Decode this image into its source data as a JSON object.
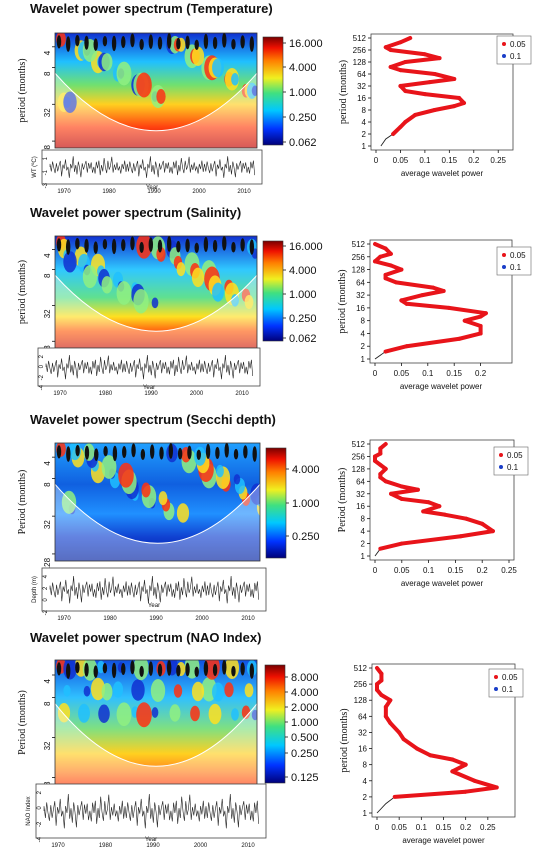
{
  "panels": [
    {
      "title": "Wavelet power spectrum (Temperature)",
      "ylabel": "period (months)",
      "colorbar_ticks": [
        "16.000",
        "4.000",
        "1.000",
        "0.250",
        "0.062"
      ],
      "ts_ylabel": "WT (ºC)",
      "ts_yticks": [
        "1",
        "-1",
        "-3"
      ]
    },
    {
      "title": "Wavelet power spectrum (Salinity)",
      "ylabel": "period (months)",
      "colorbar_ticks": [
        "16.000",
        "4.000",
        "1.000",
        "0.250",
        "0.062"
      ],
      "ts_ylabel": "",
      "ts_yticks": [
        "2",
        "0",
        "-2",
        "-4"
      ]
    },
    {
      "title": "Wavelet power spectrum (Secchi depth)",
      "ylabel": "Period (months)",
      "colorbar_ticks": [
        "4.000",
        "1.000",
        "0.250"
      ],
      "ts_ylabel": "Depth (m)",
      "ts_yticks": [
        "4",
        "2",
        "0",
        "-2"
      ]
    },
    {
      "title": "Wavelet power spectrum (NAO Index)",
      "ylabel": "Period (months)",
      "colorbar_ticks": [
        "8.000",
        "4.000",
        "2.000",
        "1.000",
        "0.500",
        "0.250",
        "0.125"
      ],
      "ts_ylabel": "NAO Index",
      "ts_yticks": [
        "2",
        "0",
        "-2",
        "-4"
      ]
    }
  ],
  "shared": {
    "period_ticks": [
      "4",
      "8",
      "32",
      "128"
    ],
    "year_ticks": [
      "1970",
      "1980",
      "1990",
      "2000",
      "2010"
    ],
    "year_label": "Year",
    "avg_period_ticks": [
      "512",
      "256",
      "128",
      "64",
      "32",
      "16",
      "8",
      "4",
      "2",
      "1"
    ],
    "avg_xlabel": "average wavelet power",
    "avg_ylabel_lower": "period (months)",
    "avg_ylabel_upper": "Period (months)",
    "legend": [
      "0.05",
      "0.1"
    ],
    "legend_colors": [
      "#e8141a",
      "#1a3ec8"
    ]
  },
  "chart_data": [
    {
      "type": "line",
      "title": "Wavelet power spectrum (Temperature)",
      "xlabel": "average wavelet power",
      "ylabel": "period (months)",
      "x_ticks": [
        "0",
        "0.05",
        "0.1",
        "0.15",
        "0.2",
        "0.25"
      ],
      "xlim": [
        0,
        0.27
      ],
      "y_scale": "log2",
      "ylim": [
        1,
        512
      ],
      "series": [
        {
          "name": "0.05",
          "period": [
            1,
            1.5,
            2,
            3,
            4,
            6,
            8,
            10,
            12,
            16,
            20,
            24,
            32,
            40,
            48,
            64,
            80,
            96,
            128,
            160,
            200,
            256,
            300,
            400,
            512
          ],
          "power": [
            0.01,
            0.02,
            0.035,
            0.05,
            0.06,
            0.08,
            0.12,
            0.16,
            0.18,
            0.17,
            0.1,
            0.06,
            0.05,
            0.11,
            0.16,
            0.12,
            0.05,
            0.03,
            0.06,
            0.13,
            0.1,
            0.03,
            0.02,
            0.05,
            0.07
          ]
        }
      ]
    },
    {
      "type": "line",
      "title": "Wavelet power spectrum (Salinity)",
      "xlabel": "average wavelet power",
      "ylabel": "period (months)",
      "x_ticks": [
        "0",
        "0.05",
        "0.1",
        "0.15",
        "0.2"
      ],
      "xlim": [
        0,
        0.25
      ],
      "y_scale": "log2",
      "ylim": [
        1,
        512
      ],
      "series": [
        {
          "name": "0.05",
          "period": [
            1,
            1.5,
            2,
            3,
            4,
            6,
            8,
            10,
            12,
            16,
            20,
            24,
            32,
            40,
            48,
            64,
            80,
            96,
            128,
            160,
            200,
            256,
            300,
            400,
            512
          ],
          "power": [
            0.0,
            0.02,
            0.06,
            0.16,
            0.2,
            0.2,
            0.17,
            0.2,
            0.21,
            0.14,
            0.06,
            0.05,
            0.09,
            0.13,
            0.11,
            0.04,
            0.02,
            0.02,
            0.05,
            0.03,
            0.0,
            0.01,
            0.03,
            0.02,
            0.0
          ]
        }
      ]
    },
    {
      "type": "line",
      "title": "Wavelet power spectrum (Secchi depth)",
      "xlabel": "average wavelet power",
      "ylabel": "Period (months)",
      "x_ticks": [
        "0",
        "0.05",
        "0.1",
        "0.15",
        "0.2",
        "0.25"
      ],
      "xlim": [
        0,
        0.25
      ],
      "y_scale": "log2",
      "ylim": [
        1,
        512
      ],
      "series": [
        {
          "name": "0.05",
          "period": [
            1,
            1.5,
            2,
            3,
            4,
            6,
            8,
            10,
            12,
            16,
            20,
            24,
            32,
            40,
            48,
            64,
            80,
            96,
            128,
            160,
            200,
            256,
            300,
            400,
            512
          ],
          "power": [
            0.0,
            0.01,
            0.05,
            0.16,
            0.22,
            0.2,
            0.17,
            0.13,
            0.09,
            0.12,
            0.1,
            0.05,
            0.03,
            0.08,
            0.05,
            0.02,
            0.01,
            0.01,
            0.02,
            0.01,
            0.0,
            0.0,
            0.01,
            0.01,
            0.02
          ]
        }
      ]
    },
    {
      "type": "line",
      "title": "Wavelet power spectrum (NAO Index)",
      "xlabel": "average wavelet power",
      "ylabel": "period (months)",
      "x_ticks": [
        "0",
        "0.05",
        "0.1",
        "0.15",
        "0.2",
        "0.25"
      ],
      "xlim": [
        0,
        0.3
      ],
      "y_scale": "log2",
      "ylim": [
        1,
        512
      ],
      "series": [
        {
          "name": "0.05",
          "period": [
            1,
            1.5,
            2,
            2.5,
            3,
            4,
            6,
            8,
            10,
            12,
            16,
            24,
            32,
            48,
            64,
            96,
            128,
            160,
            200,
            256,
            300,
            400,
            512
          ],
          "power": [
            0.0,
            0.02,
            0.04,
            0.2,
            0.27,
            0.22,
            0.17,
            0.2,
            0.17,
            0.12,
            0.09,
            0.06,
            0.05,
            0.03,
            0.02,
            0.02,
            0.03,
            0.01,
            0.0,
            0.0,
            0.01,
            0.01,
            0.0
          ]
        }
      ]
    }
  ]
}
